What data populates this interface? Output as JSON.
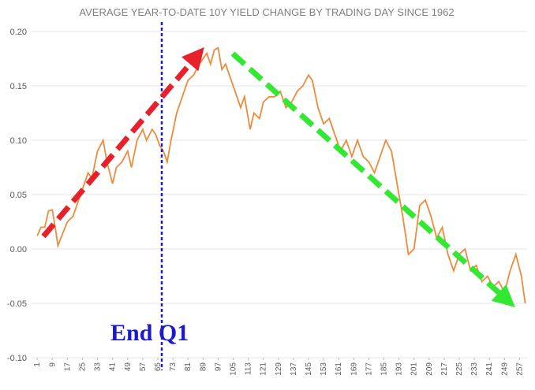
{
  "chart_data": {
    "type": "line",
    "title": "AVERAGE YEAR-TO-DATE 10Y YIELD CHANGE BY TRADING DAY SINCE 1962",
    "annotation": "End Q1",
    "color": "#ed8b3d",
    "grid": true,
    "x": [
      1,
      3,
      5,
      7,
      9,
      11,
      12,
      14,
      17,
      20,
      23,
      25,
      28,
      30,
      33,
      36,
      38,
      41,
      43,
      46,
      49,
      51,
      54,
      57,
      59,
      62,
      64,
      66,
      68,
      70,
      72,
      75,
      78,
      81,
      84,
      87,
      89,
      91,
      93,
      95,
      97,
      99,
      101,
      103,
      106,
      109,
      111,
      114,
      116,
      119,
      121,
      124,
      127,
      130,
      133,
      136,
      139,
      142,
      145,
      147,
      150,
      153,
      156,
      159,
      162,
      165,
      168,
      171,
      174,
      177,
      180,
      183,
      186,
      189,
      192,
      195,
      198,
      201,
      204,
      207,
      210,
      213,
      216,
      219,
      222,
      225,
      228,
      231,
      234,
      237,
      240,
      243,
      246,
      249,
      252,
      255,
      258,
      260
    ],
    "values": [
      0.012,
      0.02,
      0.02,
      0.035,
      0.036,
      0.015,
      0.003,
      0.012,
      0.025,
      0.03,
      0.045,
      0.055,
      0.07,
      0.065,
      0.09,
      0.1,
      0.08,
      0.06,
      0.075,
      0.08,
      0.09,
      0.075,
      0.1,
      0.11,
      0.1,
      0.11,
      0.105,
      0.095,
      0.09,
      0.08,
      0.1,
      0.125,
      0.14,
      0.155,
      0.16,
      0.17,
      0.175,
      0.18,
      0.17,
      0.183,
      0.185,
      0.165,
      0.17,
      0.16,
      0.145,
      0.13,
      0.14,
      0.11,
      0.125,
      0.12,
      0.135,
      0.14,
      0.14,
      0.145,
      0.13,
      0.135,
      0.145,
      0.15,
      0.16,
      0.155,
      0.13,
      0.115,
      0.12,
      0.105,
      0.09,
      0.1,
      0.085,
      0.1,
      0.085,
      0.08,
      0.07,
      0.085,
      0.1,
      0.09,
      0.06,
      0.03,
      -0.005,
      0.0,
      0.04,
      0.045,
      0.03,
      0.01,
      0.02,
      -0.005,
      -0.02,
      -0.005,
      0.0,
      -0.02,
      -0.015,
      -0.03,
      -0.025,
      -0.035,
      -0.03,
      -0.04,
      -0.02,
      -0.005,
      -0.025,
      -0.05
    ],
    "xlim": [
      -2,
      261
    ],
    "xticks": [
      1,
      9,
      17,
      25,
      33,
      41,
      49,
      57,
      65,
      73,
      81,
      89,
      97,
      105,
      113,
      121,
      129,
      137,
      145,
      153,
      161,
      169,
      177,
      185,
      193,
      201,
      209,
      217,
      225,
      233,
      241,
      249,
      257
    ],
    "ylim": [
      -0.1,
      0.2
    ],
    "yticks": [
      {
        "value": -0.1,
        "label": "-0.10"
      },
      -0.05,
      {
        "value": 0,
        "label": "0.00"
      },
      0.05,
      {
        "value": 0.1,
        "label": "0.10"
      },
      0.15,
      {
        "value": 0.2,
        "label": "0.20"
      }
    ]
  }
}
